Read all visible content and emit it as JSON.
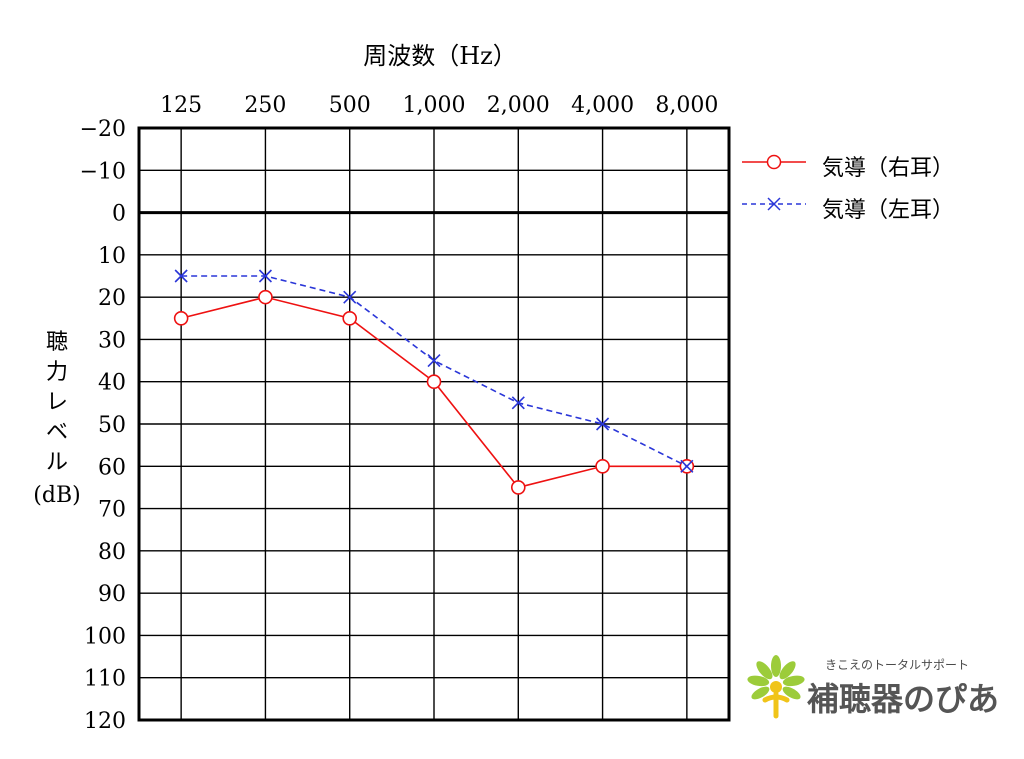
{
  "colors": {
    "right_ear": "#ee1111",
    "left_ear": "#2a36d8",
    "logo_green": "#9ccc3a",
    "logo_yellow": "#f0c419",
    "logo_text": "#555555"
  },
  "chart_data": {
    "type": "line",
    "title": "周波数（Hz）",
    "xlabel": "周波数（Hz）",
    "ylabel": "聴力レベル（dB）",
    "ylabel_main": "聴力レベル",
    "ylabel_unit": "(dB)",
    "categories": [
      "125",
      "250",
      "500",
      "1,000",
      "2,000",
      "4,000",
      "8,000"
    ],
    "yticks": [
      -20,
      -10,
      0,
      10,
      20,
      30,
      40,
      50,
      60,
      70,
      80,
      90,
      100,
      110,
      120
    ],
    "ytick_labels": [
      "−20",
      "−10",
      "0",
      "10",
      "20",
      "30",
      "40",
      "50",
      "60",
      "70",
      "80",
      "90",
      "100",
      "110",
      "120"
    ],
    "ylim": [
      -20,
      120
    ],
    "y_inverted": true,
    "zero_line_bold": true,
    "grid": true,
    "legend_position": "right-top",
    "series": [
      {
        "name": "気導（右耳）",
        "marker": "circle",
        "line_style": "solid",
        "color": "#ee1111",
        "values": [
          25,
          20,
          25,
          40,
          65,
          60,
          60
        ]
      },
      {
        "name": "気導（左耳）",
        "marker": "x",
        "line_style": "dashed",
        "color": "#2a36d8",
        "values": [
          15,
          15,
          20,
          35,
          45,
          50,
          60
        ]
      }
    ]
  },
  "logo": {
    "tagline": "きこえのトータルサポート",
    "name": "補聴器のぴあ",
    "mark_icon": "sprout-person-icon"
  }
}
